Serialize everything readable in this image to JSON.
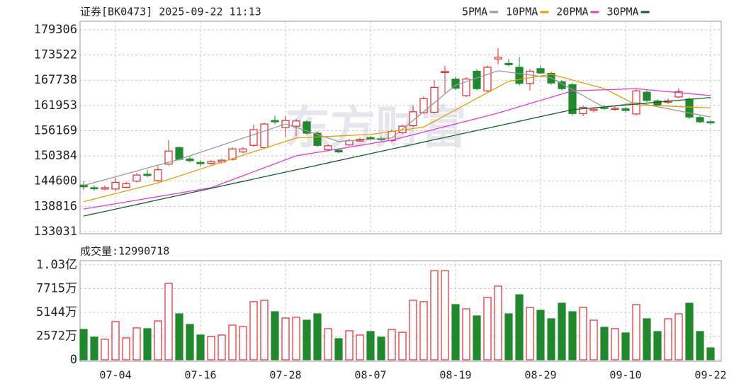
{
  "chart_data": {
    "type": "candlestick",
    "title": "证券[BK0473] 2025-09-22 11:13",
    "watermark": "东方财富",
    "up_color": "#e8262a",
    "down_color": "#1e8a2c",
    "categories": [
      null,
      null,
      null,
      "07-04",
      null,
      null,
      null,
      null,
      null,
      null,
      null,
      "07-16",
      null,
      null,
      null,
      null,
      null,
      null,
      null,
      "07-28",
      null,
      null,
      null,
      null,
      null,
      null,
      null,
      "08-07",
      null,
      null,
      null,
      null,
      null,
      null,
      null,
      "08-19",
      null,
      null,
      null,
      null,
      null,
      null,
      null,
      "08-29",
      null,
      null,
      null,
      null,
      null,
      null,
      null,
      "09-10",
      null,
      null,
      null,
      null,
      null,
      null,
      null,
      "09-22"
    ],
    "open": [
      143700,
      143100,
      142800,
      142800,
      143200,
      144600,
      146200,
      144700,
      148500,
      152300,
      149700,
      148900,
      148700,
      149000,
      149600,
      151300,
      152800,
      152300,
      158500,
      156900,
      157200,
      158200,
      155600,
      151800,
      151700,
      152900,
      153800,
      154600,
      154400,
      153900,
      155700,
      157300,
      160300,
      160400,
      169500,
      168000,
      164200,
      169800,
      165300,
      172600,
      171600,
      170700,
      167000,
      170400,
      169300,
      167400,
      166700,
      160100,
      160800,
      161500,
      161100,
      161200,
      160000,
      165000,
      163000,
      162700,
      163900,
      163400,
      159200,
      158200
    ],
    "high": [
      144600,
      143600,
      143600,
      145400,
      144500,
      146400,
      147200,
      148000,
      154000,
      152600,
      150200,
      149400,
      149400,
      149800,
      152400,
      152400,
      157600,
      158000,
      159600,
      159600,
      158800,
      158600,
      156000,
      153100,
      152100,
      154300,
      154600,
      155000,
      154900,
      156400,
      157600,
      161800,
      164000,
      167700,
      171000,
      168500,
      168400,
      170300,
      171100,
      175100,
      172600,
      173100,
      170300,
      171100,
      169700,
      167800,
      167200,
      161900,
      161500,
      162000,
      161700,
      161600,
      165700,
      165400,
      163400,
      163500,
      165900,
      163800,
      159600,
      158600
    ],
    "low": [
      142600,
      142400,
      142500,
      142300,
      142900,
      144300,
      145500,
      144400,
      148200,
      149300,
      148900,
      148100,
      148400,
      148700,
      149300,
      151000,
      152500,
      152000,
      157600,
      154600,
      154900,
      155200,
      152400,
      151400,
      151000,
      152600,
      153500,
      154000,
      153800,
      153600,
      155400,
      157000,
      160000,
      160100,
      164800,
      165500,
      163900,
      165400,
      165000,
      171400,
      170900,
      166500,
      165400,
      169100,
      166700,
      165400,
      159600,
      159500,
      160400,
      160900,
      160700,
      160300,
      159700,
      162700,
      161700,
      162300,
      163600,
      158800,
      157900,
      157600
    ],
    "close": [
      143300,
      142900,
      143100,
      144300,
      144000,
      146000,
      145900,
      147200,
      151500,
      149600,
      149300,
      148600,
      149100,
      149400,
      152000,
      152000,
      156400,
      157700,
      158200,
      158500,
      158400,
      155600,
      152800,
      152700,
      151300,
      153900,
      154200,
      154300,
      154100,
      156000,
      157200,
      160500,
      163500,
      166100,
      169800,
      165900,
      168000,
      165800,
      170700,
      173000,
      171300,
      167000,
      169800,
      169400,
      167100,
      165800,
      160100,
      161500,
      161100,
      161300,
      161300,
      160800,
      165300,
      163100,
      162100,
      163000,
      165100,
      159300,
      158200,
      158000
    ],
    "ylim": [
      133031,
      179306
    ],
    "yticks": [
      133031,
      138816,
      144600,
      150384,
      156169,
      161953,
      167738,
      173522,
      179306
    ],
    "series": [
      {
        "name": "5PMA",
        "color": "#9a9a9a",
        "values": [
          143600,
          144270,
          144930,
          145600,
          146270,
          146930,
          147600,
          148270,
          148930,
          149600,
          150410,
          151220,
          152030,
          152840,
          153650,
          154460,
          155270,
          156080,
          156890,
          157700,
          156900,
          156100,
          155300,
          154500,
          153700,
          153860,
          154020,
          154180,
          154340,
          154500,
          156520,
          158530,
          160550,
          162570,
          164580,
          166600,
          167430,
          168250,
          169080,
          169900,
          169580,
          169260,
          168940,
          168620,
          168300,
          166940,
          165580,
          164220,
          162860,
          161500,
          161870,
          162230,
          162600,
          162130,
          161660,
          161190,
          160710,
          160240,
          159770,
          159300
        ]
      },
      {
        "name": "10PMA",
        "color": "#e3a100",
        "values": [
          139900,
          140510,
          141130,
          141740,
          142360,
          142970,
          143590,
          144200,
          144990,
          145780,
          146580,
          147370,
          148160,
          148950,
          149750,
          150540,
          151330,
          152120,
          152920,
          153710,
          154500,
          154610,
          154730,
          154840,
          154960,
          155070,
          155190,
          155300,
          155640,
          155980,
          156320,
          156660,
          157000,
          158310,
          159630,
          160940,
          162250,
          163560,
          164870,
          166190,
          167500,
          167900,
          168300,
          168700,
          169100,
          168440,
          167780,
          167120,
          166460,
          165800,
          164570,
          163330,
          162100,
          162000,
          161900,
          161800,
          161700,
          161600,
          161500,
          161400
        ]
      },
      {
        "name": "20PMA",
        "color": "#e23be2",
        "values": [
          138200,
          138610,
          139020,
          139430,
          139830,
          140240,
          140650,
          141060,
          141470,
          141880,
          142280,
          142690,
          143100,
          144010,
          144930,
          145840,
          146760,
          147670,
          148580,
          149490,
          150400,
          150800,
          151200,
          151600,
          152000,
          152400,
          152800,
          153200,
          153600,
          154000,
          154620,
          155240,
          155860,
          156480,
          157100,
          157720,
          158340,
          158960,
          159580,
          160200,
          160930,
          161660,
          162390,
          163110,
          163840,
          164570,
          165300,
          165380,
          165470,
          165550,
          165630,
          165720,
          165800,
          165570,
          165340,
          165110,
          164890,
          164660,
          164430,
          164200
        ]
      },
      {
        "name": "30PMA",
        "color": "#175c2c",
        "values": [
          136600,
          137130,
          137660,
          138190,
          138720,
          139250,
          139780,
          140310,
          140840,
          141370,
          141900,
          142430,
          142960,
          143490,
          144020,
          144550,
          145080,
          145610,
          146140,
          146670,
          147200,
          147730,
          148260,
          148790,
          149320,
          149850,
          150380,
          150910,
          151440,
          151970,
          152500,
          153030,
          153560,
          154090,
          154620,
          155150,
          155680,
          156210,
          156740,
          157270,
          157800,
          158330,
          158860,
          159390,
          159920,
          160450,
          160980,
          161200,
          161410,
          161630,
          161840,
          162060,
          162270,
          162490,
          162700,
          162920,
          163130,
          163350,
          163560,
          163780
        ]
      }
    ],
    "volume": {
      "title": "成交量:12990718",
      "values": [
        33000000,
        24600000,
        22300000,
        41500000,
        23800000,
        34600000,
        33800000,
        42200000,
        82900000,
        49900000,
        38400000,
        26900000,
        25300000,
        26900000,
        37600000,
        36100000,
        63000000,
        64500000,
        52200000,
        45300000,
        46100000,
        43000000,
        49900000,
        33800000,
        23000000,
        31500000,
        26900000,
        30700000,
        24600000,
        33000000,
        29900000,
        64500000,
        63000000,
        96700000,
        96700000,
        59900000,
        55300000,
        47600000,
        67600000,
        79900000,
        49900000,
        70600000,
        56800000,
        53700000,
        44500000,
        61400000,
        52200000,
        56800000,
        43000000,
        35300000,
        33800000,
        29200000,
        59900000,
        44500000,
        30700000,
        44500000,
        49900000,
        61400000,
        30700000,
        12990718
      ],
      "ylim": [
        0,
        102880000
      ],
      "yticks": [
        0,
        {
          "value": 25720000,
          "label": "2572万"
        },
        {
          "value": 51440000,
          "label": "5144万"
        },
        {
          "value": 77150000,
          "label": "7715万"
        },
        {
          "value": 102880000,
          "label": "1.03亿"
        }
      ]
    }
  }
}
